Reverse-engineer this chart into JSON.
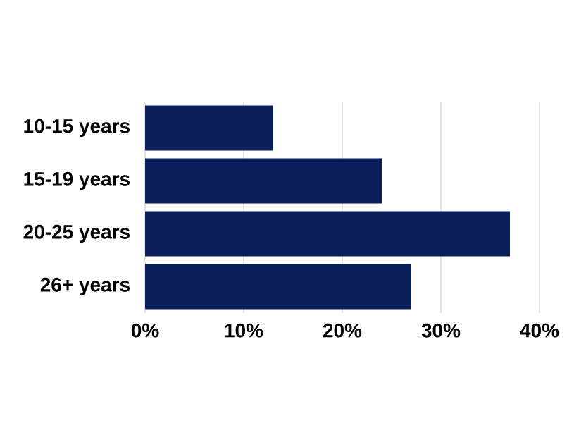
{
  "chart_data": {
    "type": "bar",
    "orientation": "horizontal",
    "categories": [
      "10-15 years",
      "15-19 years",
      "20-25 years",
      "26+ years"
    ],
    "values": [
      13,
      24,
      37,
      27
    ],
    "color": "#0b1f5c",
    "xlim": [
      0,
      40
    ],
    "xticks": [
      {
        "value": 0,
        "label": "0%"
      },
      {
        "value": 10,
        "label": "10%"
      },
      {
        "value": 20,
        "label": "20%"
      },
      {
        "value": 30,
        "label": "30%"
      },
      {
        "value": 40,
        "label": "40%"
      }
    ],
    "grid": "x"
  }
}
